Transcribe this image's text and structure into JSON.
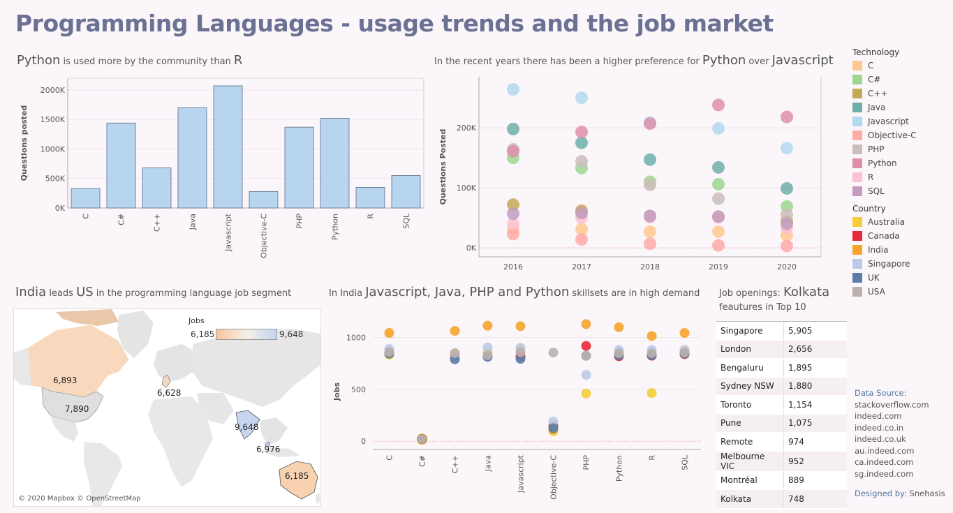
{
  "title": "Programming Languages - usage trends and the job market",
  "panel1": {
    "t1": "Python",
    "t2": " is used more by the community than ",
    "t3": "R"
  },
  "panel2": {
    "t1": "In the recent years there has been a higher preference for ",
    "t2": "Python",
    "t3": " over ",
    "t4": "Javascript"
  },
  "panel3": {
    "t1": "India",
    "t2": " leads ",
    "t3": "US",
    "t4": " in the programming language job segment"
  },
  "panel4": {
    "t1": "In India ",
    "t2": "Javascript, Java, PHP and Python",
    "t3": " skillsets are in high demand"
  },
  "panel5": {
    "t1": "Job openings: ",
    "t2": "Kolkata",
    "t3": "feautures in Top 10"
  },
  "legend": {
    "tech_title": "Technology",
    "tech": [
      {
        "label": "C",
        "color": "#ffc891"
      },
      {
        "label": "C#",
        "color": "#9ed68f"
      },
      {
        "label": "C++",
        "color": "#c4a956"
      },
      {
        "label": "Java",
        "color": "#6fafa8"
      },
      {
        "label": "Javascript",
        "color": "#b4d8ef"
      },
      {
        "label": "Objective-C",
        "color": "#ffaaa6"
      },
      {
        "label": "PHP",
        "color": "#cbbdbb"
      },
      {
        "label": "Python",
        "color": "#de8fa9"
      },
      {
        "label": "R",
        "color": "#fcc2d0"
      },
      {
        "label": "SQL",
        "color": "#c29cbf"
      }
    ],
    "country_title": "Country",
    "country": [
      {
        "label": "Australia",
        "color": "#f5cd36"
      },
      {
        "label": "Canada",
        "color": "#e8283a"
      },
      {
        "label": "India",
        "color": "#f6a42c"
      },
      {
        "label": "Singapore",
        "color": "#bccae6"
      },
      {
        "label": "UK",
        "color": "#5a7ea7"
      },
      {
        "label": "USA",
        "color": "#bcb1ae"
      }
    ]
  },
  "map": {
    "legend_title": "Jobs",
    "min_label": "6,185",
    "max_label": "9,648",
    "labels": [
      {
        "name": "Canada",
        "text": "6,893"
      },
      {
        "name": "USA",
        "text": "7,890"
      },
      {
        "name": "UK",
        "text": "6,628"
      },
      {
        "name": "India",
        "text": "9,648"
      },
      {
        "name": "Singapore",
        "text": "6,976"
      },
      {
        "name": "Australia",
        "text": "6,185"
      }
    ],
    "credit": "© 2020 Mapbox © OpenStreetMap"
  },
  "table": [
    {
      "city": "Singapore",
      "jobs": "5,905"
    },
    {
      "city": "London",
      "jobs": "2,656"
    },
    {
      "city": "Bengaluru",
      "jobs": "1,895"
    },
    {
      "city": "Sydney NSW",
      "jobs": "1,880"
    },
    {
      "city": "Toronto",
      "jobs": "1,154"
    },
    {
      "city": "Pune",
      "jobs": "1,075"
    },
    {
      "city": "Remote",
      "jobs": "974"
    },
    {
      "city": "Melbourne VIC",
      "jobs": "952"
    },
    {
      "city": "Montréal",
      "jobs": "889"
    },
    {
      "city": "Kolkata",
      "jobs": "748"
    }
  ],
  "sources": {
    "label": "Data Source:",
    "items": [
      "stackoverflow.com",
      "indeed.com",
      "indeed.co.in",
      "indeed.co.uk",
      "au.indeed.com",
      "ca.indeed.com",
      "sg.indeed.com"
    ],
    "designed_label": "Designed by:",
    "designer": " Snehasis"
  },
  "chart_data": [
    {
      "type": "bar",
      "ylabel": "Questions posted",
      "ylim": [
        0,
        2200000
      ],
      "yticks": [
        0,
        500000,
        1000000,
        1500000,
        2000000
      ],
      "ytick_labels": [
        "0K",
        "500K",
        "1000K",
        "1500K",
        "2000K"
      ],
      "categories": [
        "C",
        "C#",
        "C++",
        "Java",
        "Javascript",
        "Objective-C",
        "PHP",
        "Python",
        "R",
        "SQL"
      ],
      "values": [
        330000,
        1440000,
        680000,
        1700000,
        2070000,
        280000,
        1370000,
        1520000,
        350000,
        550000
      ],
      "color": "#b7d5ee"
    },
    {
      "type": "scatter",
      "ylabel": "Questions Posted",
      "ylim": [
        -15000,
        285000
      ],
      "yticks": [
        0,
        100000,
        200000
      ],
      "ytick_labels": [
        "0K",
        "100K",
        "200K"
      ],
      "categories": [
        "2016",
        "2017",
        "2018",
        "2019",
        "2020"
      ],
      "series": [
        {
          "name": "C",
          "values": [
            32000,
            31000,
            27000,
            27000,
            21000
          ]
        },
        {
          "name": "C#",
          "values": [
            150000,
            133000,
            110000,
            106000,
            69000
          ]
        },
        {
          "name": "C++",
          "values": [
            72000,
            62000,
            53000,
            52000,
            44000
          ]
        },
        {
          "name": "Java",
          "values": [
            198000,
            175000,
            147000,
            134000,
            99000
          ]
        },
        {
          "name": "Javascript",
          "values": [
            264000,
            250000,
            209000,
            199000,
            166000
          ]
        },
        {
          "name": "Objective-C",
          "values": [
            23000,
            14000,
            7000,
            4000,
            3000
          ]
        },
        {
          "name": "PHP",
          "values": [
            164000,
            144000,
            105000,
            82000,
            55000
          ]
        },
        {
          "name": "Python",
          "values": [
            161000,
            193000,
            207000,
            238000,
            218000
          ]
        },
        {
          "name": "R",
          "values": [
            40000,
            50000,
            51000,
            51000,
            33000
          ]
        },
        {
          "name": "SQL",
          "values": [
            57000,
            58000,
            53000,
            52000,
            40000
          ]
        }
      ]
    },
    {
      "type": "scatter",
      "ylabel": "Jobs",
      "ylim": [
        -80,
        1200
      ],
      "yticks": [
        0,
        500,
        1000
      ],
      "ytick_labels": [
        "0",
        "500",
        "1000"
      ],
      "categories": [
        "C",
        "C#",
        "C++",
        "Java",
        "Javascript",
        "Objective-C",
        "PHP",
        "Python",
        "R",
        "SQL"
      ],
      "series": [
        {
          "name": "Australia",
          "values": [
            835,
            20,
            840,
            855,
            900,
            95,
            460,
            850,
            465,
            880
          ]
        },
        {
          "name": "Canada",
          "values": [
            850,
            20,
            820,
            820,
            820,
            145,
            920,
            820,
            825,
            840
          ]
        },
        {
          "name": "India",
          "values": [
            1045,
            20,
            1065,
            1115,
            1110,
            115,
            1130,
            1100,
            1015,
            1045
          ]
        },
        {
          "name": "Singapore",
          "values": [
            890,
            20,
            815,
            905,
            900,
            190,
            640,
            880,
            880,
            880
          ]
        },
        {
          "name": "UK",
          "values": [
            845,
            20,
            790,
            815,
            795,
            125,
            825,
            830,
            830,
            845
          ]
        },
        {
          "name": "USA",
          "values": [
            860,
            20,
            850,
            830,
            860,
            855,
            825,
            850,
            850,
            855
          ]
        }
      ]
    }
  ]
}
